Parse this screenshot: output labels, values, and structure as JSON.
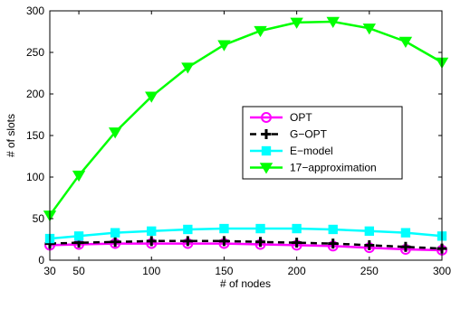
{
  "chart_data": {
    "type": "line",
    "title": "",
    "xlabel": "# of nodes",
    "ylabel": "# of slots",
    "xlim": [
      30,
      300
    ],
    "ylim": [
      0,
      300
    ],
    "x_ticks": [
      30,
      50,
      100,
      150,
      200,
      250,
      300
    ],
    "y_ticks": [
      0,
      50,
      100,
      150,
      200,
      250,
      300
    ],
    "grid": false,
    "legend_position": "center-right",
    "x": [
      30,
      50,
      75,
      100,
      125,
      150,
      175,
      200,
      225,
      250,
      275,
      300
    ],
    "series": [
      {
        "name": "OPT",
        "color": "#ff00ff",
        "marker": "circle",
        "line": "solid",
        "values": [
          18,
          19,
          20,
          20,
          20,
          20,
          19,
          18,
          17,
          15,
          13,
          12
        ]
      },
      {
        "name": "G−OPT",
        "color": "#000000",
        "marker": "plus",
        "line": "dashed",
        "values": [
          20,
          21,
          22,
          23,
          23,
          23,
          22,
          21,
          20,
          18,
          16,
          14
        ]
      },
      {
        "name": "E−model",
        "color": "#00ffff",
        "marker": "square",
        "line": "solid",
        "values": [
          26,
          29,
          33,
          35,
          37,
          38,
          38,
          38,
          37,
          35,
          33,
          29
        ]
      },
      {
        "name": "17−approximation",
        "color": "#00ff00",
        "marker": "triangle-down",
        "line": "solid",
        "values": [
          54,
          102,
          154,
          197,
          232,
          259,
          276,
          286,
          287,
          279,
          263,
          238
        ]
      }
    ]
  }
}
